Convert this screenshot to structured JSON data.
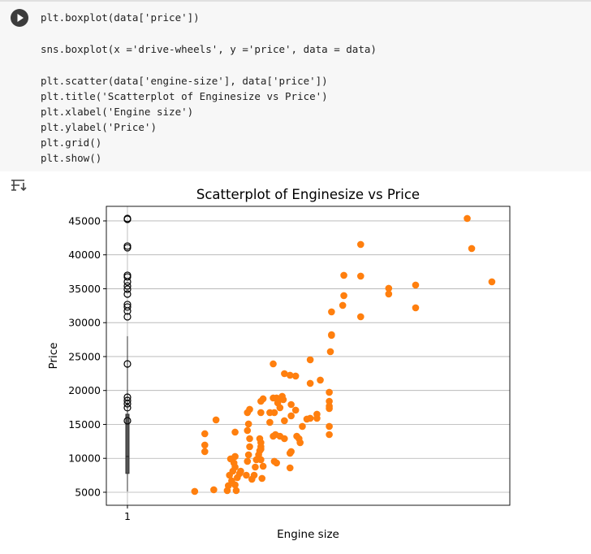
{
  "code": {
    "lines": [
      "plt.boxplot(data['price'])",
      "sns.boxplot(x ='drive-wheels', y ='price', data = data)",
      "plt.scatter(data['engine-size'], data['price'])",
      "plt.title('Scatterplot of Enginesize vs Price')",
      "plt.xlabel('Engine size')",
      "plt.ylabel('Price')",
      "plt.grid()",
      "plt.show()"
    ]
  },
  "chart_data": {
    "type": "scatter",
    "title": "Scatterplot of Enginesize vs Price",
    "xlabel": "Engine size",
    "ylabel": "Price",
    "xlim": [
      -17.8,
      342
    ],
    "ylim": [
      3080,
      47150
    ],
    "xticks": [
      1
    ],
    "yticks": [
      5000,
      10000,
      15000,
      20000,
      25000,
      30000,
      35000,
      40000,
      45000
    ],
    "grid": true,
    "boxplot": {
      "x": 1,
      "whislo": 5118,
      "q1": 7775,
      "med": 10270,
      "q3": 16500,
      "whishi": 28000,
      "fliers": [
        45360,
        45240,
        41290,
        41050,
        36980,
        36740,
        36020,
        35420,
        34940,
        34220,
        32670,
        32310,
        31710,
        30870,
        23920,
        19010,
        18530,
        18050,
        17460,
        15540
      ]
    },
    "series": [
      {
        "color": "#ff7f0e",
        "x": [
          61,
          78,
          80,
          70,
          70,
          70,
          90,
          91,
          94,
          92,
          95,
          97,
          96,
          93,
          98,
          97,
          99,
          101,
          102,
          97,
          97,
          108,
          107,
          109,
          110,
          110,
          108,
          109,
          108,
          110,
          112,
          114,
          115,
          116,
          118,
          119,
          120,
          120,
          119,
          120,
          122,
          121,
          120,
          120,
          120,
          122,
          128,
          128,
          131,
          131,
          132,
          132,
          134,
          133,
          131,
          134,
          135,
          136,
          137,
          139,
          140,
          141,
          141,
          137,
          141,
          146,
          147,
          147,
          146,
          147,
          146,
          151,
          151,
          152,
          154,
          155,
          157,
          161,
          164,
          164,
          164,
          170,
          170,
          173,
          181,
          181,
          181,
          181,
          181,
          181,
          182,
          183,
          183,
          183,
          194,
          193,
          194,
          209,
          209,
          209,
          234,
          234,
          258,
          258,
          304,
          308,
          326
        ],
        "values": [
          5120,
          5360,
          15660,
          13620,
          11950,
          10990,
          5240,
          5960,
          6680,
          7510,
          8110,
          8710,
          9310,
          9910,
          5240,
          6080,
          7160,
          7750,
          8110,
          10270,
          13860,
          9550,
          7510,
          10510,
          11710,
          12900,
          14100,
          15060,
          16740,
          17220,
          6920,
          7510,
          8710,
          9790,
          10510,
          11110,
          11710,
          12310,
          12900,
          9790,
          8830,
          7040,
          11350,
          16740,
          18410,
          18770,
          16740,
          15300,
          18890,
          23920,
          16740,
          9550,
          9310,
          13500,
          13260,
          18890,
          18170,
          18650,
          17460,
          19130,
          18650,
          22480,
          15540,
          13260,
          12900,
          22250,
          17930,
          16260,
          10750,
          10990,
          8590,
          17100,
          22130,
          13260,
          12900,
          12310,
          14700,
          15780,
          21050,
          24520,
          15900,
          16500,
          15900,
          21530,
          19730,
          18410,
          17690,
          17340,
          13500,
          14700,
          25720,
          28230,
          28130,
          31590,
          33980,
          32550,
          36980,
          41530,
          36860,
          30870,
          35060,
          34220,
          35540,
          32190,
          45360,
          40930,
          36020
        ]
      }
    ]
  }
}
